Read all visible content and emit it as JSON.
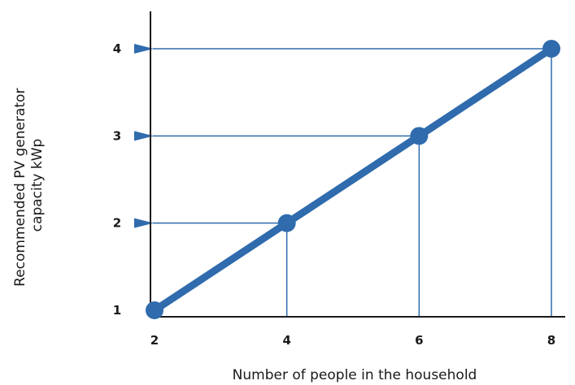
{
  "chart_data": {
    "type": "line",
    "xlabel": "Number of people in the household",
    "ylabel_lines": [
      "Recommended PV generator",
      "capacity kWp"
    ],
    "x_ticks": [
      "2",
      "4",
      "6",
      "8"
    ],
    "y_ticks": [
      "1",
      "2",
      "3",
      "4"
    ],
    "xlim": [
      2,
      8
    ],
    "ylim": [
      1,
      4
    ],
    "grid": false,
    "series": [
      {
        "x": [
          2,
          4,
          6,
          8
        ],
        "y": [
          1,
          2,
          3,
          4
        ]
      }
    ],
    "guides": [
      {
        "x": 4,
        "y": 2
      },
      {
        "x": 6,
        "y": 3
      },
      {
        "x": 8,
        "y": 4
      }
    ],
    "colors": {
      "line": "#2f6bad",
      "axis": "#1a1a1a"
    }
  }
}
